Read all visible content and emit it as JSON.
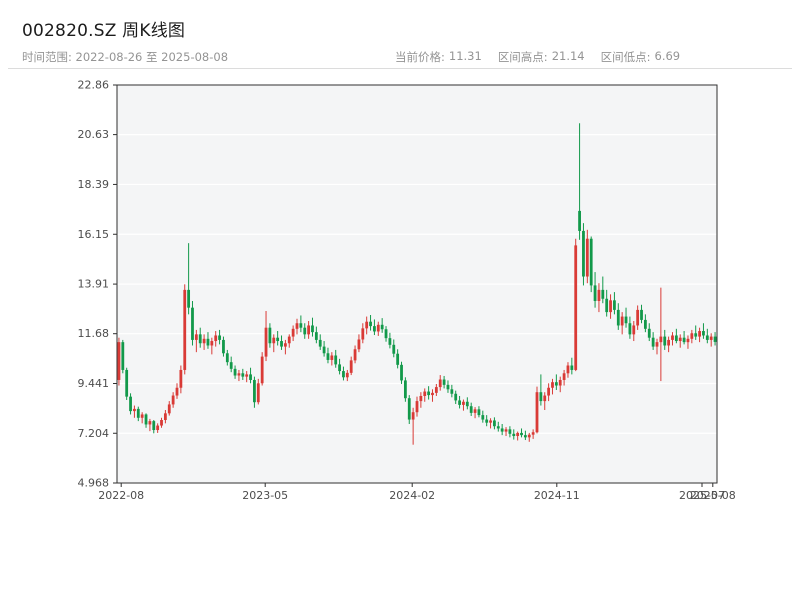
{
  "header": {
    "title": "002820.SZ 周K线图",
    "date_range_label": "时间范围: 2022-08-26 至 2025-08-08",
    "stats": [
      {
        "label": "当前价格:",
        "value": "11.31"
      },
      {
        "label": "区间高点:",
        "value": "21.14"
      },
      {
        "label": "区间低点:",
        "value": "6.69"
      }
    ]
  },
  "chart_data": {
    "type": "candlestick",
    "symbol": "002820.SZ",
    "period": "weekly",
    "title": "002820.SZ 周K线图",
    "date_range": {
      "start": "2022-08-26",
      "end": "2025-08-08"
    },
    "current_price": 11.31,
    "range_high": 21.14,
    "range_low": 6.69,
    "ylim": [
      4.968,
      22.86
    ],
    "y_ticks": [
      22.86,
      20.63,
      18.39,
      16.15,
      13.91,
      11.68,
      9.441,
      7.204,
      4.968
    ],
    "y_tick_labels": [
      "22.86",
      "20.63",
      "18.39",
      "16.15",
      "13.91",
      "11.68",
      "9.441",
      "7.204",
      "4.968"
    ],
    "x_ticks": [
      {
        "label": "2022-08",
        "pos": 0.007
      },
      {
        "label": "2023-05",
        "pos": 0.247
      },
      {
        "label": "2024-02",
        "pos": 0.492
      },
      {
        "label": "2024-11",
        "pos": 0.733
      },
      {
        "label": "2025-07",
        "pos": 0.975
      },
      {
        "label": "2025-08",
        "pos": 0.993
      }
    ],
    "grid": "horizontal",
    "legend": "none",
    "colors": {
      "up": "#d93a36",
      "down": "#12994a",
      "plot_bg": "#f4f5f6",
      "grid": "#ffffff",
      "spine": "#2f2f2f"
    },
    "candles_format": [
      "open",
      "high",
      "low",
      "close"
    ],
    "candles": [
      [
        9.6,
        11.5,
        9.35,
        11.3
      ],
      [
        11.3,
        11.4,
        9.9,
        10.05
      ],
      [
        10.05,
        10.15,
        8.7,
        8.85
      ],
      [
        8.85,
        9.0,
        8.05,
        8.2
      ],
      [
        8.2,
        8.45,
        7.9,
        8.3
      ],
      [
        8.3,
        8.4,
        7.75,
        7.9
      ],
      [
        7.9,
        8.15,
        7.65,
        8.05
      ],
      [
        8.05,
        8.1,
        7.45,
        7.6
      ],
      [
        7.6,
        7.85,
        7.3,
        7.75
      ],
      [
        7.75,
        7.8,
        7.2,
        7.35
      ],
      [
        7.35,
        7.65,
        7.22,
        7.55
      ],
      [
        7.55,
        7.9,
        7.45,
        7.8
      ],
      [
        7.8,
        8.25,
        7.65,
        8.1
      ],
      [
        8.1,
        8.65,
        8.0,
        8.5
      ],
      [
        8.5,
        9.05,
        8.35,
        8.9
      ],
      [
        8.9,
        9.45,
        8.75,
        9.25
      ],
      [
        9.25,
        10.25,
        9.0,
        10.05
      ],
      [
        10.05,
        13.9,
        9.85,
        13.65
      ],
      [
        13.65,
        15.75,
        12.55,
        12.85
      ],
      [
        12.85,
        13.15,
        11.15,
        11.4
      ],
      [
        11.4,
        11.85,
        10.85,
        11.65
      ],
      [
        11.65,
        11.95,
        11.05,
        11.25
      ],
      [
        11.25,
        11.65,
        10.95,
        11.45
      ],
      [
        11.45,
        11.75,
        11.0,
        11.15
      ],
      [
        11.15,
        11.5,
        10.75,
        11.35
      ],
      [
        11.35,
        11.8,
        11.1,
        11.6
      ],
      [
        11.6,
        11.85,
        11.2,
        11.4
      ],
      [
        11.4,
        11.55,
        10.65,
        10.8
      ],
      [
        10.8,
        10.95,
        10.25,
        10.4
      ],
      [
        10.4,
        10.65,
        9.95,
        10.1
      ],
      [
        10.1,
        10.25,
        9.65,
        9.8
      ],
      [
        9.8,
        10.05,
        9.55,
        9.9
      ],
      [
        9.9,
        10.1,
        9.6,
        9.75
      ],
      [
        9.75,
        10.0,
        9.5,
        9.85
      ],
      [
        9.85,
        10.15,
        9.45,
        9.6
      ],
      [
        9.6,
        9.75,
        8.35,
        8.6
      ],
      [
        8.6,
        9.65,
        8.5,
        9.45
      ],
      [
        9.45,
        10.85,
        9.35,
        10.65
      ],
      [
        10.65,
        12.7,
        10.45,
        11.95
      ],
      [
        11.95,
        12.15,
        11.05,
        11.25
      ],
      [
        11.25,
        11.65,
        10.85,
        11.5
      ],
      [
        11.5,
        11.8,
        11.15,
        11.35
      ],
      [
        11.35,
        11.6,
        10.95,
        11.1
      ],
      [
        11.1,
        11.4,
        10.75,
        11.25
      ],
      [
        11.25,
        11.65,
        11.05,
        11.55
      ],
      [
        11.55,
        12.05,
        11.35,
        11.9
      ],
      [
        11.9,
        12.35,
        11.65,
        12.15
      ],
      [
        12.15,
        12.5,
        11.75,
        11.95
      ],
      [
        11.95,
        12.15,
        11.45,
        11.65
      ],
      [
        11.65,
        12.25,
        11.45,
        12.05
      ],
      [
        12.05,
        12.4,
        11.55,
        11.75
      ],
      [
        11.75,
        12.0,
        11.25,
        11.4
      ],
      [
        11.4,
        11.65,
        10.95,
        11.1
      ],
      [
        11.1,
        11.35,
        10.65,
        10.8
      ],
      [
        10.8,
        11.05,
        10.35,
        10.5
      ],
      [
        10.5,
        10.85,
        10.25,
        10.7
      ],
      [
        10.7,
        10.95,
        10.15,
        10.3
      ],
      [
        10.3,
        10.55,
        9.85,
        10.0
      ],
      [
        10.0,
        10.2,
        9.58,
        9.72
      ],
      [
        9.72,
        10.05,
        9.55,
        9.92
      ],
      [
        9.92,
        10.65,
        9.82,
        10.48
      ],
      [
        10.48,
        11.15,
        10.35,
        10.98
      ],
      [
        10.98,
        11.65,
        10.85,
        11.42
      ],
      [
        11.42,
        12.15,
        11.25,
        11.92
      ],
      [
        11.92,
        12.45,
        11.65,
        12.22
      ],
      [
        12.22,
        12.52,
        11.82,
        12.02
      ],
      [
        12.02,
        12.32,
        11.62,
        11.78
      ],
      [
        11.78,
        12.22,
        11.58,
        12.08
      ],
      [
        12.08,
        12.38,
        11.72,
        11.88
      ],
      [
        11.88,
        12.02,
        11.32,
        11.48
      ],
      [
        11.48,
        11.72,
        11.02,
        11.18
      ],
      [
        11.18,
        11.42,
        10.62,
        10.78
      ],
      [
        10.78,
        10.98,
        10.12,
        10.28
      ],
      [
        10.28,
        10.42,
        9.42,
        9.58
      ],
      [
        9.58,
        9.72,
        8.62,
        8.78
      ],
      [
        8.78,
        8.92,
        7.62,
        7.82
      ],
      [
        7.82,
        8.35,
        6.69,
        8.15
      ],
      [
        8.15,
        8.85,
        7.95,
        8.65
      ],
      [
        8.65,
        9.05,
        8.35,
        8.88
      ],
      [
        8.88,
        9.22,
        8.62,
        9.08
      ],
      [
        9.08,
        9.32,
        8.72,
        8.92
      ],
      [
        8.92,
        9.18,
        8.62,
        9.02
      ],
      [
        9.02,
        9.42,
        8.88,
        9.28
      ],
      [
        9.28,
        9.82,
        9.12,
        9.62
      ],
      [
        9.62,
        9.78,
        9.22,
        9.38
      ],
      [
        9.38,
        9.58,
        9.02,
        9.18
      ],
      [
        9.18,
        9.38,
        8.82,
        8.98
      ],
      [
        8.98,
        9.12,
        8.52,
        8.68
      ],
      [
        8.68,
        8.88,
        8.32,
        8.48
      ],
      [
        8.48,
        8.72,
        8.22,
        8.62
      ],
      [
        8.62,
        8.82,
        8.28,
        8.42
      ],
      [
        8.42,
        8.58,
        7.98,
        8.12
      ],
      [
        8.12,
        8.38,
        7.88,
        8.28
      ],
      [
        8.28,
        8.42,
        7.92,
        8.02
      ],
      [
        8.02,
        8.22,
        7.68,
        7.82
      ],
      [
        7.82,
        8.02,
        7.52,
        7.68
      ],
      [
        7.68,
        7.88,
        7.42,
        7.78
      ],
      [
        7.78,
        7.92,
        7.38,
        7.52
      ],
      [
        7.52,
        7.72,
        7.28,
        7.42
      ],
      [
        7.42,
        7.62,
        7.12,
        7.28
      ],
      [
        7.28,
        7.48,
        7.08,
        7.38
      ],
      [
        7.38,
        7.52,
        7.02,
        7.18
      ],
      [
        7.18,
        7.38,
        6.92,
        7.08
      ],
      [
        7.08,
        7.28,
        6.88,
        7.22
      ],
      [
        7.22,
        7.42,
        7.02,
        7.12
      ],
      [
        7.12,
        7.32,
        6.9,
        7.02
      ],
      [
        7.02,
        7.22,
        6.82,
        7.14
      ],
      [
        7.14,
        7.38,
        6.95,
        7.25
      ],
      [
        7.25,
        9.3,
        7.2,
        9.05
      ],
      [
        9.05,
        9.85,
        8.45,
        8.65
      ],
      [
        8.65,
        9.05,
        8.25,
        8.9
      ],
      [
        8.9,
        9.45,
        8.65,
        9.25
      ],
      [
        9.25,
        9.65,
        8.95,
        9.5
      ],
      [
        9.5,
        9.85,
        9.15,
        9.35
      ],
      [
        9.35,
        9.75,
        9.05,
        9.6
      ],
      [
        9.6,
        10.05,
        9.35,
        9.9
      ],
      [
        9.9,
        10.4,
        9.7,
        10.25
      ],
      [
        10.25,
        10.6,
        9.85,
        10.05
      ],
      [
        10.05,
        15.95,
        10.0,
        15.65
      ],
      [
        17.2,
        21.14,
        15.9,
        16.3
      ],
      [
        16.3,
        16.65,
        13.85,
        14.25
      ],
      [
        14.25,
        16.35,
        13.95,
        15.95
      ],
      [
        15.95,
        16.05,
        13.55,
        13.85
      ],
      [
        13.85,
        14.45,
        12.85,
        13.15
      ],
      [
        13.15,
        13.95,
        12.65,
        13.65
      ],
      [
        13.65,
        14.25,
        13.05,
        13.25
      ],
      [
        13.25,
        13.65,
        12.45,
        12.65
      ],
      [
        12.65,
        13.45,
        12.35,
        13.18
      ],
      [
        13.18,
        13.55,
        12.55,
        12.75
      ],
      [
        12.75,
        13.05,
        11.85,
        12.05
      ],
      [
        12.05,
        12.65,
        11.65,
        12.45
      ],
      [
        12.45,
        12.85,
        11.95,
        12.15
      ],
      [
        12.15,
        12.45,
        11.45,
        11.65
      ],
      [
        11.65,
        12.25,
        11.35,
        12.05
      ],
      [
        12.05,
        12.95,
        11.85,
        12.75
      ],
      [
        12.75,
        12.98,
        12.15,
        12.3
      ],
      [
        12.3,
        12.55,
        11.75,
        11.9
      ],
      [
        11.9,
        12.15,
        11.35,
        11.5
      ],
      [
        11.5,
        11.75,
        10.95,
        11.1
      ],
      [
        11.1,
        11.45,
        10.75,
        11.3
      ],
      [
        11.3,
        13.75,
        9.55,
        11.55
      ],
      [
        11.55,
        11.85,
        10.95,
        11.15
      ],
      [
        11.15,
        11.55,
        10.85,
        11.4
      ],
      [
        11.4,
        11.75,
        11.15,
        11.6
      ],
      [
        11.6,
        11.9,
        11.25,
        11.35
      ],
      [
        11.35,
        11.65,
        11.05,
        11.5
      ],
      [
        11.5,
        11.8,
        11.2,
        11.3
      ],
      [
        11.3,
        11.6,
        11.0,
        11.45
      ],
      [
        11.45,
        11.85,
        11.25,
        11.7
      ],
      [
        11.7,
        12.05,
        11.4,
        11.55
      ],
      [
        11.55,
        11.95,
        11.3,
        11.8
      ],
      [
        11.8,
        12.15,
        11.45,
        11.6
      ],
      [
        11.6,
        11.9,
        11.25,
        11.4
      ],
      [
        11.4,
        11.7,
        11.1,
        11.55
      ],
      [
        11.55,
        11.75,
        11.15,
        11.31
      ]
    ]
  }
}
